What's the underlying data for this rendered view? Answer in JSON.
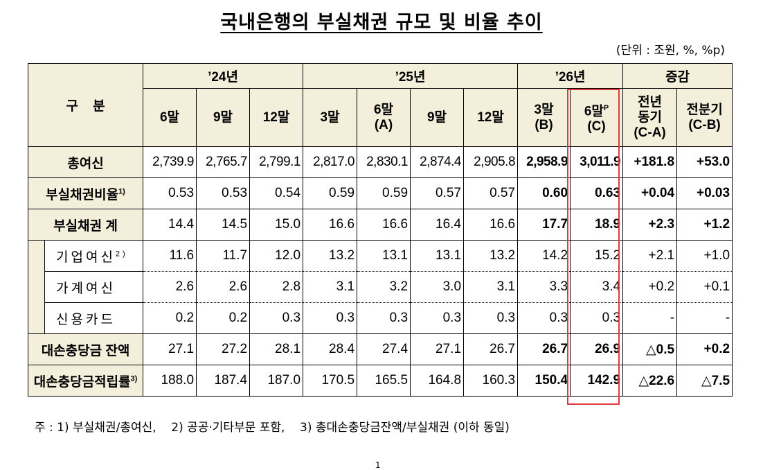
{
  "title": "국내은행의 부실채권 규모 및 비율 추이",
  "unit": "(단위 : 조원, %, %p)",
  "header": {
    "category": "구    분",
    "years": [
      "’24년",
      "’25년",
      "’26년",
      "증감"
    ],
    "periods": [
      {
        "l1": "6말",
        "l2": ""
      },
      {
        "l1": "9말",
        "l2": ""
      },
      {
        "l1": "12말",
        "l2": ""
      },
      {
        "l1": "3말",
        "l2": ""
      },
      {
        "l1": "6말",
        "l2": "(A)"
      },
      {
        "l1": "9말",
        "l2": ""
      },
      {
        "l1": "12말",
        "l2": ""
      },
      {
        "l1": "3말",
        "l2": "(B)"
      },
      {
        "l1": "6말",
        "sup": "P",
        "l2": "(C)"
      },
      {
        "l1": "전년",
        "l2": "동기",
        "l3": "(C-A)"
      },
      {
        "l1": "전분기",
        "l2": "(C-B)"
      }
    ]
  },
  "rows": [
    {
      "label": "총여신",
      "sup": "",
      "values": [
        "2,739.9",
        "2,765.7",
        "2,799.1",
        "2,817.0",
        "2,830.1",
        "2,874.4",
        "2,905.8",
        "2,958.9",
        "3,011.9",
        "+181.8",
        "+53.0"
      ]
    },
    {
      "label": "부실채권비율",
      "sup": "1)",
      "values": [
        "0.53",
        "0.53",
        "0.54",
        "0.59",
        "0.59",
        "0.57",
        "0.57",
        "0.60",
        "0.63",
        "+0.04",
        "+0.03"
      ]
    },
    {
      "label": "부실채권 계",
      "sup": "",
      "values": [
        "14.4",
        "14.5",
        "15.0",
        "16.6",
        "16.6",
        "16.4",
        "16.6",
        "17.7",
        "18.9",
        "+2.3",
        "+1.2"
      ]
    },
    {
      "label": "기업여신",
      "sup": "2)",
      "values": [
        "11.6",
        "11.7",
        "12.0",
        "13.2",
        "13.1",
        "13.1",
        "13.2",
        "14.2",
        "15.2",
        "+2.1",
        "+1.0"
      ]
    },
    {
      "label": "가계여신",
      "sup": "",
      "values": [
        "2.6",
        "2.6",
        "2.8",
        "3.1",
        "3.2",
        "3.0",
        "3.1",
        "3.3",
        "3.4",
        "+0.2",
        "+0.1"
      ]
    },
    {
      "label": "신용카드",
      "sup": "",
      "values": [
        "0.2",
        "0.2",
        "0.3",
        "0.3",
        "0.3",
        "0.3",
        "0.3",
        "0.3",
        "0.3",
        "-",
        "-"
      ]
    },
    {
      "label": "대손충당금 잔액",
      "sup": "",
      "values": [
        "27.1",
        "27.2",
        "28.1",
        "28.4",
        "27.4",
        "27.1",
        "26.7",
        "26.7",
        "26.9",
        "△0.5",
        "+0.2"
      ]
    },
    {
      "label": "대손충당금적립률",
      "sup": "3)",
      "values": [
        "188.0",
        "187.4",
        "187.0",
        "170.5",
        "165.5",
        "164.8",
        "160.3",
        "150.4",
        "142.9",
        "△22.6",
        "△7.5"
      ]
    }
  ],
  "note": "주 : 1) 부실채권/총여신,    2) 공공·기타부문 포함,    3) 총대손충당금잔액/부실채권 (이하 동일)",
  "page_number": "1",
  "highlight_color": "#e0393e",
  "header_bg": "#f3efdb"
}
